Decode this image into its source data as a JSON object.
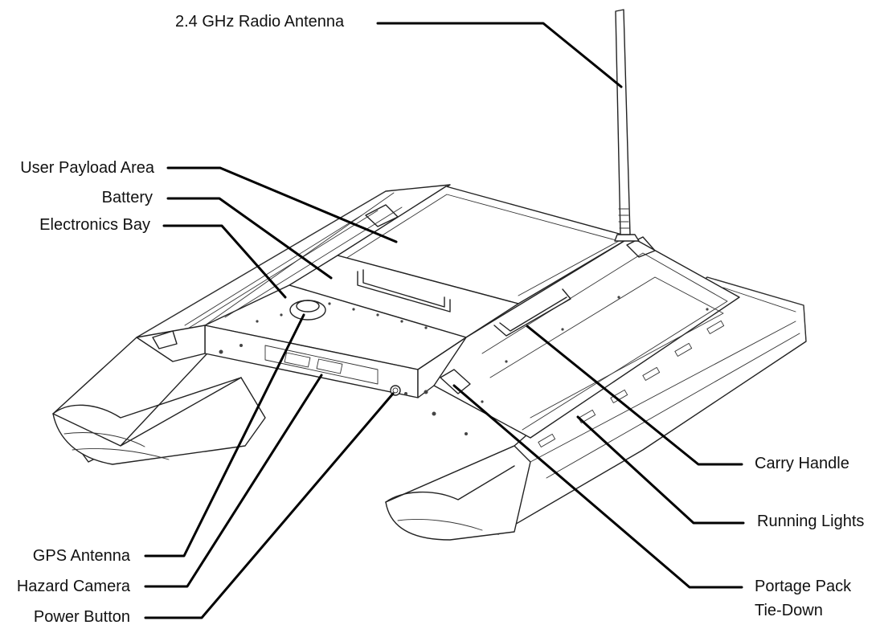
{
  "labels": {
    "radio_antenna": "2.4 GHz Radio Antenna",
    "user_payload_area": "User Payload Area",
    "battery": "Battery",
    "electronics_bay": "Electronics Bay",
    "gps_antenna": "GPS Antenna",
    "hazard_camera": "Hazard Camera",
    "power_button": "Power Button",
    "carry_handle": "Carry Handle",
    "running_lights": "Running Lights",
    "portage_pack_line1": "Portage Pack",
    "portage_pack_line2": "Tie-Down"
  },
  "colors": {
    "ink": "#111111",
    "leader": "#000000",
    "background": "#ffffff"
  }
}
